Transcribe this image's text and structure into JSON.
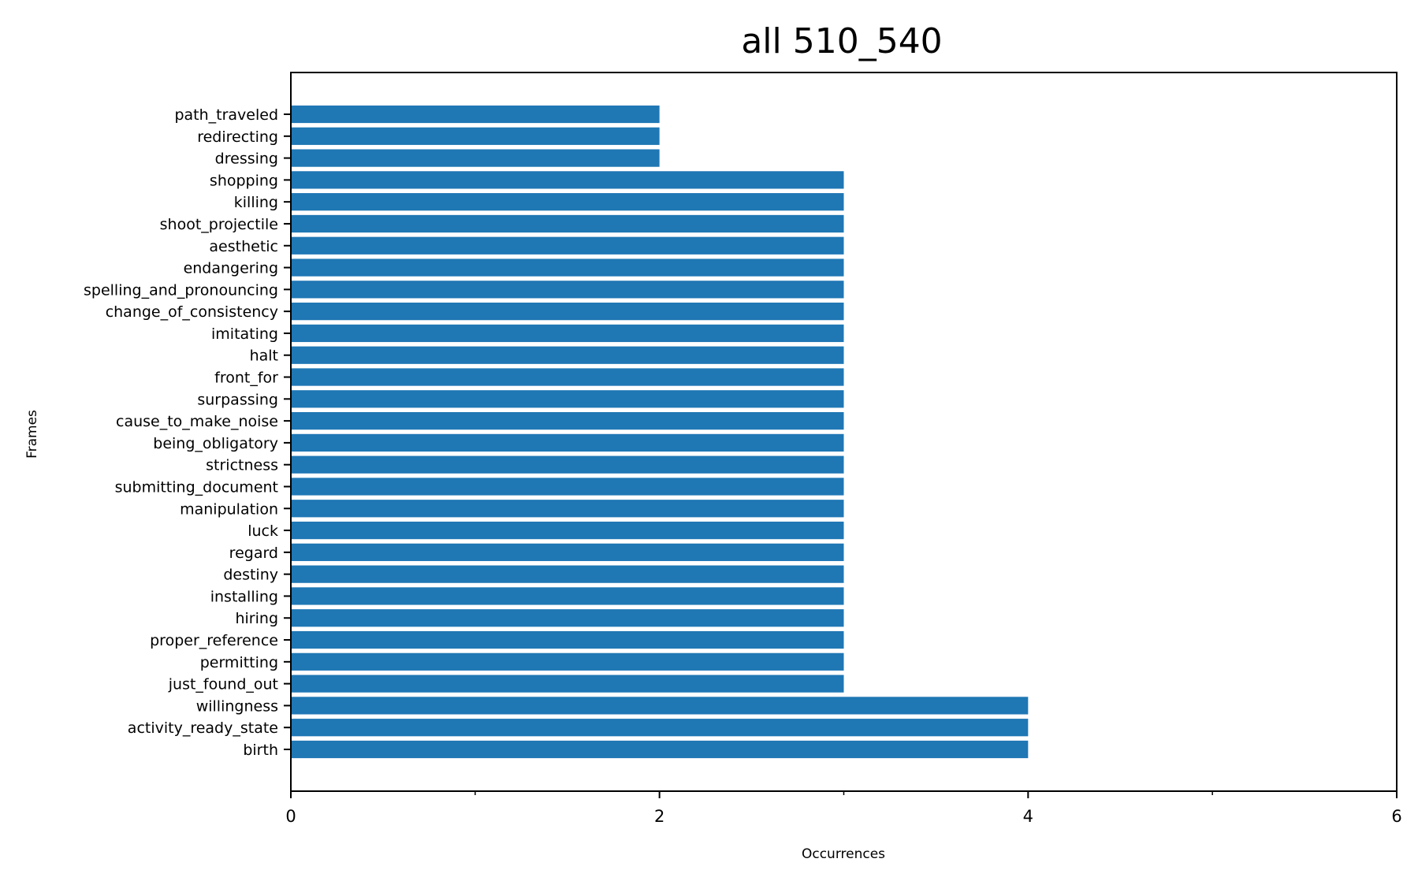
{
  "chart_data": {
    "type": "bar",
    "orientation": "horizontal",
    "title": "all 510_540",
    "xlabel": "Occurrences",
    "ylabel": "Frames",
    "xlim": [
      0,
      6
    ],
    "x_major_ticks": [
      0,
      2,
      4,
      6
    ],
    "x_minor_ticks": [
      1,
      3,
      5
    ],
    "x_tick_labels": [
      "0",
      "2",
      "4",
      "6"
    ],
    "grid": false,
    "bar_color": "#1f77b4",
    "categories": [
      "path_traveled",
      "redirecting",
      "dressing",
      "shopping",
      "killing",
      "shoot_projectile",
      "aesthetic",
      "endangering",
      "spelling_and_pronouncing",
      "change_of_consistency",
      "imitating",
      "halt",
      "front_for",
      "surpassing",
      "cause_to_make_noise",
      "being_obligatory",
      "strictness",
      "submitting_document",
      "manipulation",
      "luck",
      "regard",
      "destiny",
      "installing",
      "hiring",
      "proper_reference",
      "permitting",
      "just_found_out",
      "willingness",
      "activity_ready_state",
      "birth"
    ],
    "values": [
      2,
      2,
      2,
      3,
      3,
      3,
      3,
      3,
      3,
      3,
      3,
      3,
      3,
      3,
      3,
      3,
      3,
      3,
      3,
      3,
      3,
      3,
      3,
      3,
      3,
      3,
      3,
      4,
      4,
      4
    ]
  }
}
